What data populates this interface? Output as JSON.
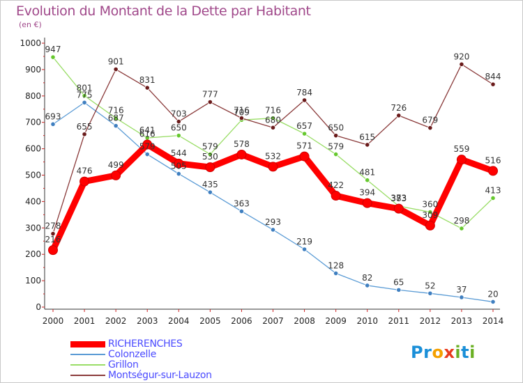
{
  "title": "Evolution du Montant de la Dette par Habitant",
  "unit_label": "(en €)",
  "brand": {
    "letters": [
      {
        "ch": "P",
        "color": "#1a8fd8"
      },
      {
        "ch": "r",
        "color": "#1a8fd8"
      },
      {
        "ch": "o",
        "color": "#f4a000"
      },
      {
        "ch": "x",
        "color": "#e83a1e"
      },
      {
        "ch": "i",
        "color": "#6ab023"
      },
      {
        "ch": "t",
        "color": "#1a8fd8"
      },
      {
        "ch": "i",
        "color": "#6ab023"
      }
    ]
  },
  "chart_data": {
    "type": "line",
    "title": "Evolution du Montant de la Dette par Habitant",
    "ylabel": "(en €)",
    "xlabel": "",
    "x": [
      "2000",
      "2001",
      "2002",
      "2003",
      "2004",
      "2005",
      "2006",
      "2007",
      "2008",
      "2009",
      "2010",
      "2011",
      "2012",
      "2013",
      "2014"
    ],
    "ylim": [
      0,
      1000
    ],
    "yticks": [
      0,
      100,
      200,
      300,
      400,
      500,
      600,
      700,
      800,
      900,
      1000
    ],
    "grid": false,
    "legend_position": "bottom-left",
    "series": [
      {
        "name": "RICHERENCHES",
        "color": "#ff0000",
        "marker_color": "#ee0000",
        "width": "thick",
        "values": [
          216,
          476,
          499,
          616,
          544,
          530,
          578,
          532,
          571,
          422,
          394,
          373,
          309,
          559,
          516
        ]
      },
      {
        "name": "Colonzelle",
        "color": "#5a9bd5",
        "marker_color": "#3f7fc0",
        "width": "thin",
        "values": [
          693,
          775,
          687,
          579,
          505,
          435,
          363,
          293,
          219,
          128,
          82,
          65,
          52,
          37,
          20
        ]
      },
      {
        "name": "Grillon",
        "color": "#99dd66",
        "marker_color": "#66c82e",
        "width": "thin",
        "values": [
          947,
          801,
          716,
          641,
          650,
          579,
          709,
          716,
          657,
          579,
          481,
          383,
          360,
          298,
          413
        ]
      },
      {
        "name": "Montségur-sur-Lauzon",
        "color": "#8a3a3a",
        "marker_color": "#6a1a1a",
        "width": "thin",
        "values": [
          278,
          655,
          901,
          831,
          703,
          777,
          716,
          680,
          784,
          650,
          615,
          726,
          679,
          920,
          844
        ]
      }
    ]
  }
}
